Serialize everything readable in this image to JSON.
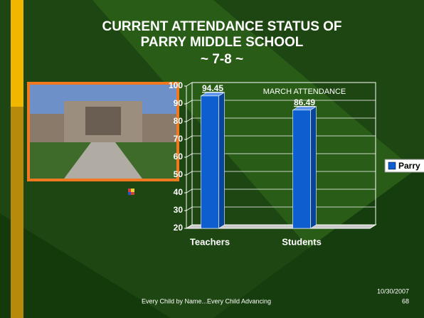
{
  "slide": {
    "title_lines": [
      "CURRENT ATTENDANCE STATUS OF",
      "PARRY MIDDLE SCHOOL",
      "~ 7-8 ~"
    ],
    "footer": "Every Child by Name...Every Child Advancing",
    "date": "10/30/2007",
    "page": "68"
  },
  "chart_data": {
    "type": "bar",
    "title": "MARCH ATTENDANCE",
    "categories": [
      "Teachers",
      "Students"
    ],
    "series": [
      {
        "name": "Parry",
        "color": "#0d5fd0",
        "values": [
          94.45,
          86.49
        ]
      }
    ],
    "ylim": [
      20,
      100
    ],
    "yticks": [
      20,
      30,
      40,
      50,
      60,
      70,
      80,
      90,
      100
    ],
    "grid": true,
    "legend": "right"
  }
}
